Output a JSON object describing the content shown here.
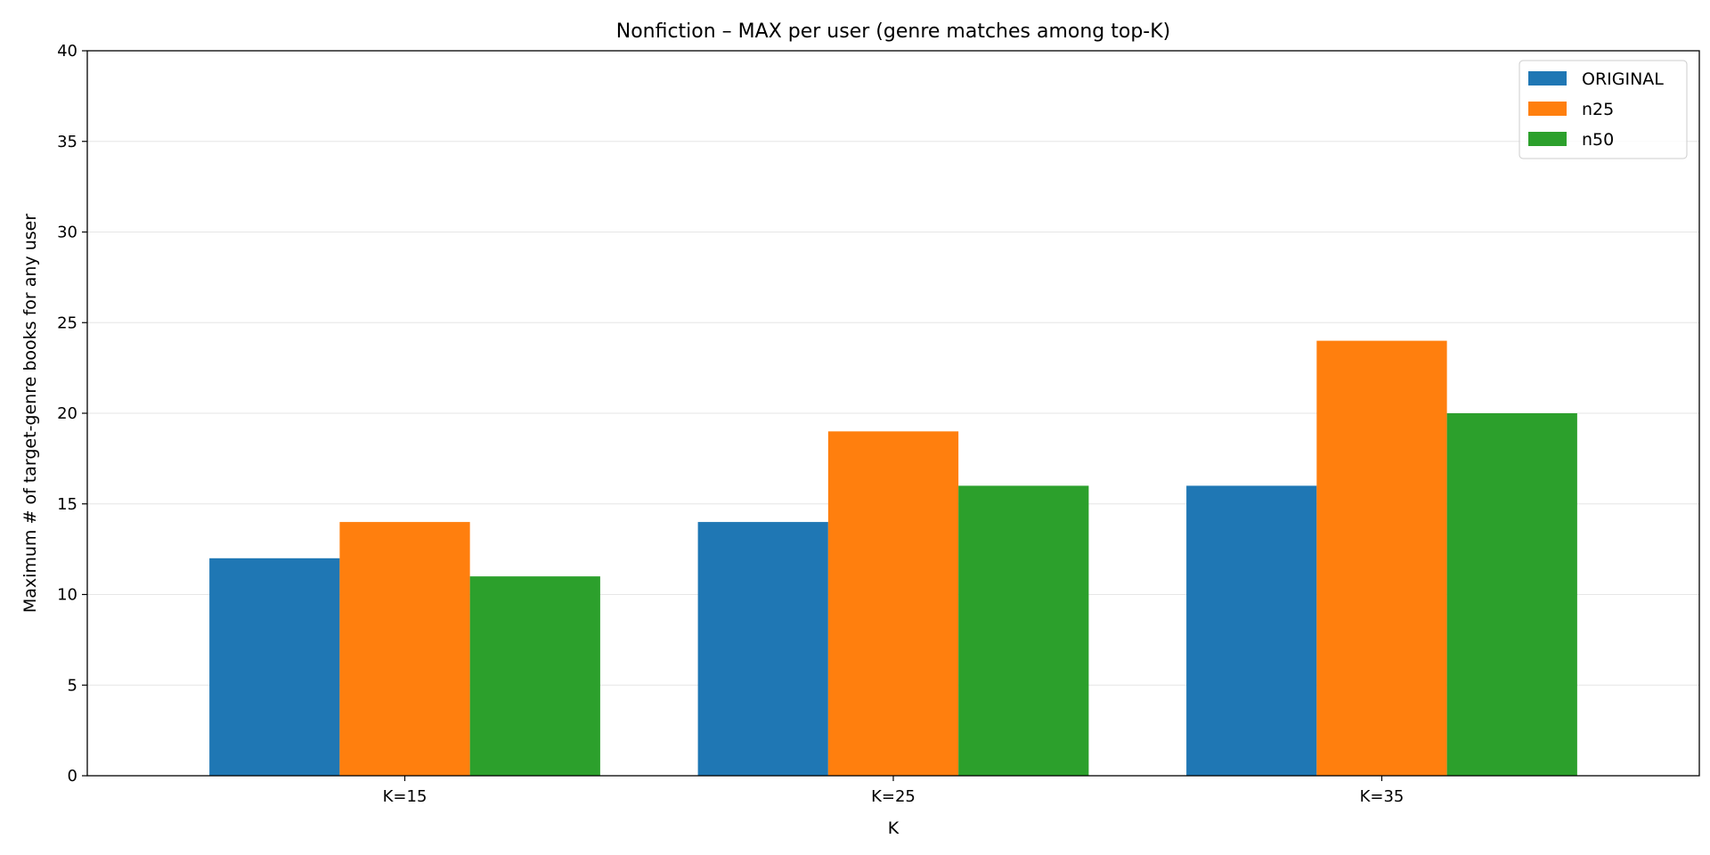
{
  "chart_data": {
    "type": "bar",
    "title": "Nonfiction – MAX per user (genre matches among top-K)",
    "xlabel": "K",
    "ylabel": "Maximum # of target-genre books for any user",
    "categories": [
      "K=15",
      "K=25",
      "K=35"
    ],
    "series": [
      {
        "name": "ORIGINAL",
        "color": "#1f77b4",
        "values": [
          12,
          14,
          16
        ]
      },
      {
        "name": "n25",
        "color": "#ff7f0e",
        "values": [
          14,
          19,
          24
        ]
      },
      {
        "name": "n50",
        "color": "#2ca02c",
        "values": [
          11,
          16,
          20
        ]
      }
    ],
    "ylim": [
      0,
      40
    ],
    "yticks": [
      0,
      5,
      10,
      15,
      20,
      25,
      30,
      35,
      40
    ],
    "grid": "y",
    "legend_position": "top-right"
  }
}
